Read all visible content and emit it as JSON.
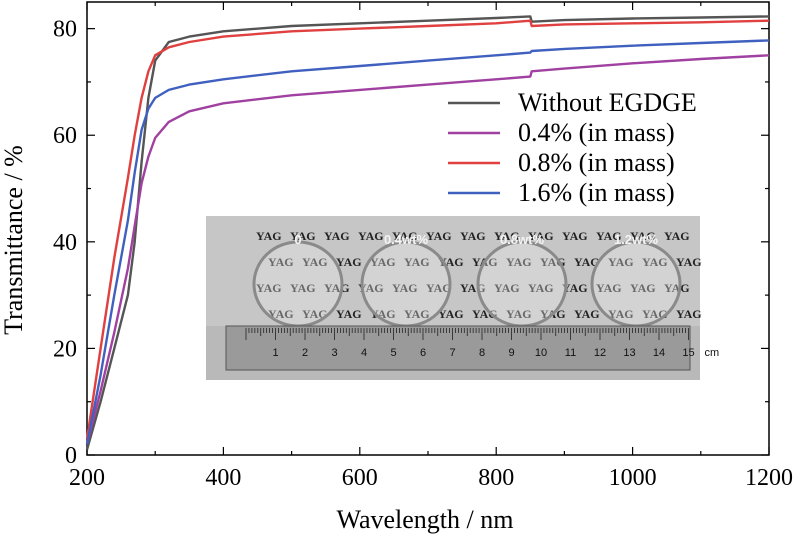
{
  "chart_data": {
    "type": "line",
    "title": "",
    "xlabel": "Wavelength / nm",
    "ylabel": "Transmittance / %",
    "xlim": [
      200,
      1200
    ],
    "ylim": [
      0,
      85
    ],
    "xticks": [
      200,
      400,
      600,
      800,
      1000,
      1200
    ],
    "yticks": [
      0,
      20,
      40,
      60,
      80
    ],
    "grid": false,
    "legend_position": "upper-right",
    "series": [
      {
        "name": "Without EGDGE",
        "color": "#555555",
        "x": [
          200,
          220,
          240,
          260,
          270,
          280,
          290,
          300,
          320,
          350,
          400,
          500,
          600,
          700,
          800,
          850,
          852,
          900,
          1000,
          1100,
          1200
        ],
        "y": [
          1,
          10,
          20,
          30,
          40,
          55,
          67,
          74,
          77.5,
          78.5,
          79.5,
          80.5,
          81,
          81.5,
          82,
          82.3,
          81.3,
          81.6,
          81.9,
          82.1,
          82.3
        ]
      },
      {
        "name": "0.4% (in mass)",
        "color": "#a040a0",
        "x": [
          200,
          220,
          240,
          260,
          270,
          280,
          290,
          300,
          320,
          350,
          400,
          500,
          600,
          700,
          800,
          850,
          852,
          900,
          1000,
          1100,
          1200
        ],
        "y": [
          2,
          12,
          23,
          35,
          43,
          51,
          56,
          59.5,
          62.5,
          64.5,
          66,
          67.5,
          68.5,
          69.5,
          70.5,
          71,
          72,
          72.5,
          73.5,
          74.3,
          75
        ]
      },
      {
        "name": "0.8% (in mass)",
        "color": "#e04040",
        "x": [
          200,
          220,
          240,
          260,
          270,
          280,
          290,
          300,
          320,
          350,
          400,
          500,
          600,
          700,
          800,
          850,
          852,
          900,
          1000,
          1100,
          1200
        ],
        "y": [
          3,
          20,
          37,
          52,
          60,
          67,
          72,
          75,
          76.5,
          77.5,
          78.5,
          79.5,
          80,
          80.5,
          81,
          81.5,
          80.5,
          80.8,
          81,
          81.2,
          81.5
        ]
      },
      {
        "name": "1.6% (in mass)",
        "color": "#4060c0",
        "x": [
          200,
          220,
          240,
          260,
          270,
          280,
          290,
          300,
          320,
          350,
          400,
          500,
          600,
          700,
          800,
          850,
          852,
          900,
          1000,
          1100,
          1200
        ],
        "y": [
          2,
          15,
          30,
          44,
          53,
          61,
          65,
          67,
          68.5,
          69.5,
          70.5,
          72,
          73,
          74,
          75,
          75.5,
          75.8,
          76.2,
          76.8,
          77.3,
          77.8
        ]
      }
    ],
    "inset_photo": {
      "description_labels": [
        "0",
        "0.4wt%",
        "0.8wt%",
        "1.2wt%"
      ],
      "background_word": "YAG",
      "ruler_numbers": [
        "1",
        "2",
        "3",
        "4",
        "5",
        "6",
        "7",
        "8",
        "9",
        "10",
        "11",
        "12",
        "13",
        "14",
        "15"
      ],
      "ruler_unit": "cm"
    }
  }
}
